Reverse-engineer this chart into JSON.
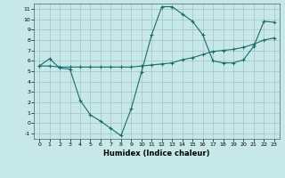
{
  "title": "",
  "xlabel": "Humidex (Indice chaleur)",
  "background_color": "#c6e8e8",
  "grid_color": "#a0b8b8",
  "line_color": "#1a6b6b",
  "xlim": [
    -0.5,
    23.5
  ],
  "ylim": [
    -1.5,
    11.5
  ],
  "x_ticks": [
    0,
    1,
    2,
    3,
    4,
    5,
    6,
    7,
    8,
    9,
    10,
    11,
    12,
    13,
    14,
    15,
    16,
    17,
    18,
    19,
    20,
    21,
    22,
    23
  ],
  "y_ticks": [
    -1,
    0,
    1,
    2,
    3,
    4,
    5,
    6,
    7,
    8,
    9,
    10,
    11
  ],
  "line1_x": [
    0,
    1,
    2,
    3,
    4,
    5,
    6,
    7,
    8,
    9,
    10,
    11,
    12,
    13,
    14,
    15,
    16,
    17,
    18,
    19,
    20,
    21,
    22,
    23
  ],
  "line1_y": [
    5.5,
    6.2,
    5.3,
    5.2,
    2.2,
    0.8,
    0.2,
    -0.5,
    -1.2,
    1.4,
    4.9,
    8.5,
    11.2,
    11.2,
    10.5,
    9.8,
    8.5,
    6.0,
    5.8,
    5.8,
    6.1,
    7.4,
    9.8,
    9.7
  ],
  "line2_x": [
    0,
    1,
    2,
    3,
    4,
    5,
    6,
    7,
    8,
    9,
    10,
    11,
    12,
    13,
    14,
    15,
    16,
    17,
    18,
    19,
    20,
    21,
    22,
    23
  ],
  "line2_y": [
    5.5,
    5.5,
    5.4,
    5.4,
    5.4,
    5.4,
    5.4,
    5.4,
    5.4,
    5.4,
    5.5,
    5.6,
    5.7,
    5.8,
    6.1,
    6.3,
    6.6,
    6.9,
    7.0,
    7.1,
    7.3,
    7.6,
    8.0,
    8.2
  ]
}
